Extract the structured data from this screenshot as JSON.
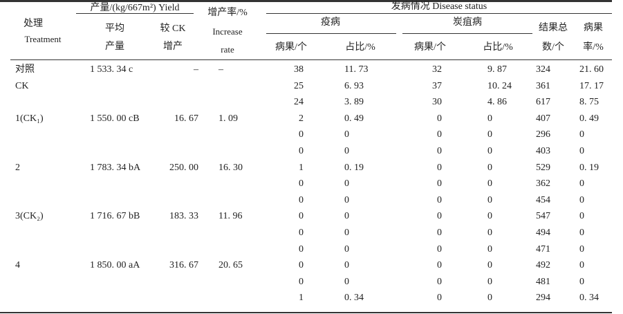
{
  "header": {
    "treatment_zh": "处理",
    "treatment_en": "Treatment",
    "yield_group": "产量/(kg/667m²) Yield",
    "avg_yield_1": "平均",
    "avg_yield_2": "产量",
    "vs_ck_1": "较 CK",
    "vs_ck_2": "增产",
    "rate_1": "增产率/%",
    "rate_2": "Increase",
    "rate_3": "rate",
    "disease_group": "发病情况 Disease status",
    "blight": "疫病",
    "anthracnose": "炭疽病",
    "diseased_count": "病果/个",
    "ratio": "占比/%",
    "total_1": "结果总",
    "total_2": "数/个",
    "disease_rate_1": "病果",
    "disease_rate_2": "率/%"
  },
  "rows": [
    {
      "treatment": "对照",
      "avg": "1 533. 34 c",
      "vs_ck": "–",
      "rate": "–",
      "b_count": "38",
      "b_ratio": "11. 73",
      "a_count": "32",
      "a_ratio": "9. 87",
      "total": "324",
      "d_rate": "21. 60"
    },
    {
      "treatment": "CK",
      "avg": "",
      "vs_ck": "",
      "rate": "",
      "b_count": "25",
      "b_ratio": "6. 93",
      "a_count": "37",
      "a_ratio": "10. 24",
      "total": "361",
      "d_rate": "17. 17"
    },
    {
      "treatment": "",
      "avg": "",
      "vs_ck": "",
      "rate": "",
      "b_count": "24",
      "b_ratio": "3. 89",
      "a_count": "30",
      "a_ratio": "4. 86",
      "total": "617",
      "d_rate": "8. 75"
    },
    {
      "treatment": "1(CK₁)",
      "avg": "1 550. 00 cB",
      "vs_ck": "16. 67",
      "rate": "1. 09",
      "b_count": "2",
      "b_ratio": "0. 49",
      "a_count": "0",
      "a_ratio": "0",
      "total": "407",
      "d_rate": "0. 49"
    },
    {
      "treatment": "",
      "avg": "",
      "vs_ck": "",
      "rate": "",
      "b_count": "0",
      "b_ratio": "0",
      "a_count": "0",
      "a_ratio": "0",
      "total": "296",
      "d_rate": "0"
    },
    {
      "treatment": "",
      "avg": "",
      "vs_ck": "",
      "rate": "",
      "b_count": "0",
      "b_ratio": "0",
      "a_count": "0",
      "a_ratio": "0",
      "total": "403",
      "d_rate": "0"
    },
    {
      "treatment": "2",
      "avg": "1 783. 34 bA",
      "vs_ck": "250. 00",
      "rate": "16. 30",
      "b_count": "1",
      "b_ratio": "0. 19",
      "a_count": "0",
      "a_ratio": "0",
      "total": "529",
      "d_rate": "0. 19"
    },
    {
      "treatment": "",
      "avg": "",
      "vs_ck": "",
      "rate": "",
      "b_count": "0",
      "b_ratio": "0",
      "a_count": "0",
      "a_ratio": "0",
      "total": "362",
      "d_rate": "0"
    },
    {
      "treatment": "",
      "avg": "",
      "vs_ck": "",
      "rate": "",
      "b_count": "0",
      "b_ratio": "0",
      "a_count": "0",
      "a_ratio": "0",
      "total": "454",
      "d_rate": "0"
    },
    {
      "treatment": "3(CK₂)",
      "avg": "1 716. 67 bB",
      "vs_ck": "183. 33",
      "rate": "11. 96",
      "b_count": "0",
      "b_ratio": "0",
      "a_count": "0",
      "a_ratio": "0",
      "total": "547",
      "d_rate": "0"
    },
    {
      "treatment": "",
      "avg": "",
      "vs_ck": "",
      "rate": "",
      "b_count": "0",
      "b_ratio": "0",
      "a_count": "0",
      "a_ratio": "0",
      "total": "494",
      "d_rate": "0"
    },
    {
      "treatment": "",
      "avg": "",
      "vs_ck": "",
      "rate": "",
      "b_count": "0",
      "b_ratio": "0",
      "a_count": "0",
      "a_ratio": "0",
      "total": "471",
      "d_rate": "0"
    },
    {
      "treatment": "4",
      "avg": "1 850. 00 aA",
      "vs_ck": "316. 67",
      "rate": "20. 65",
      "b_count": "0",
      "b_ratio": "0",
      "a_count": "0",
      "a_ratio": "0",
      "total": "492",
      "d_rate": "0"
    },
    {
      "treatment": "",
      "avg": "",
      "vs_ck": "",
      "rate": "",
      "b_count": "0",
      "b_ratio": "0",
      "a_count": "0",
      "a_ratio": "0",
      "total": "481",
      "d_rate": "0"
    },
    {
      "treatment": "",
      "avg": "",
      "vs_ck": "",
      "rate": "",
      "b_count": "1",
      "b_ratio": "0. 34",
      "a_count": "0",
      "a_ratio": "0",
      "total": "294",
      "d_rate": "0. 34"
    }
  ]
}
